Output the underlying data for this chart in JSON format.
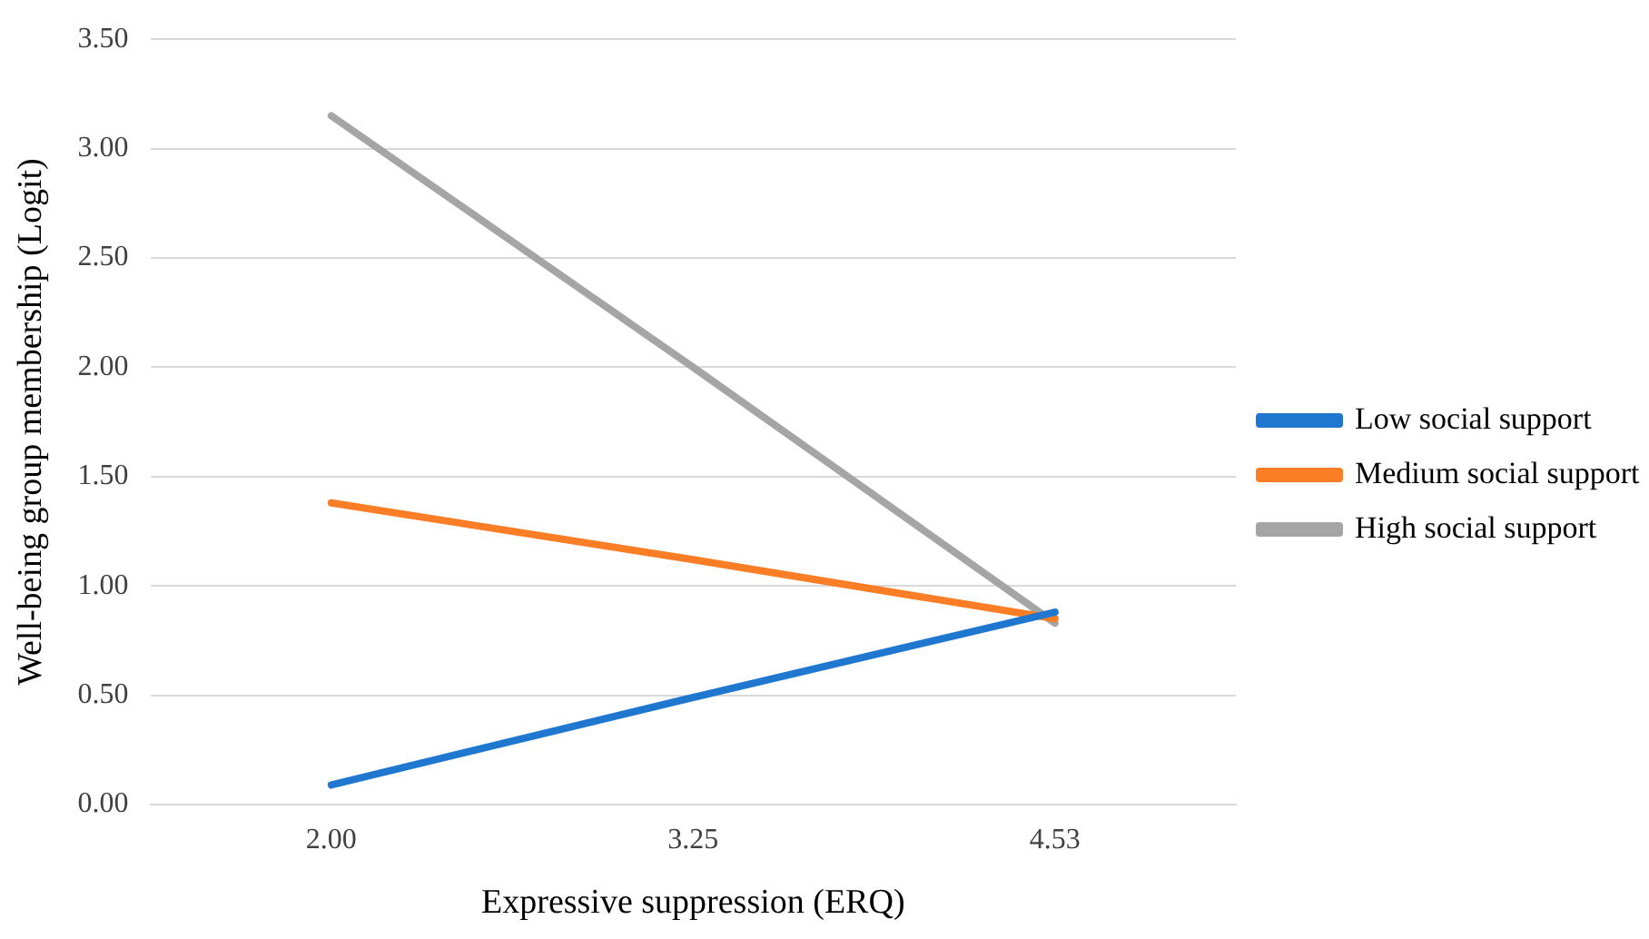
{
  "chart_data": {
    "type": "line",
    "xlabel": "Expressive suppression (ERQ)",
    "ylabel": "Well-being group membership (Logit)",
    "categories": [
      "2.00",
      "3.25",
      "4.53"
    ],
    "series": [
      {
        "name": "Low social support",
        "color": "#1f77d0",
        "values": [
          0.09,
          0.49,
          0.88
        ]
      },
      {
        "name": "Medium social support",
        "color": "#fb7e26",
        "values": [
          1.38,
          1.12,
          0.85
        ]
      },
      {
        "name": "High social support",
        "color": "#a5a5a5",
        "values": [
          3.15,
          2.0,
          0.83
        ]
      }
    ],
    "ylim": [
      0,
      3.5
    ],
    "yticks": [
      {
        "value": 0,
        "label": "0.00"
      },
      {
        "value": 0.5,
        "label": "0.50"
      },
      {
        "value": 1,
        "label": "1.00"
      },
      {
        "value": 1.5,
        "label": "1.50"
      },
      {
        "value": 2,
        "label": "2.00"
      },
      {
        "value": 2.5,
        "label": "2.50"
      },
      {
        "value": 3,
        "label": "3.00"
      },
      {
        "value": 3.5,
        "label": "3.50"
      }
    ],
    "grid": "y",
    "legend": "right",
    "marker": "none",
    "line_style": "solid"
  }
}
